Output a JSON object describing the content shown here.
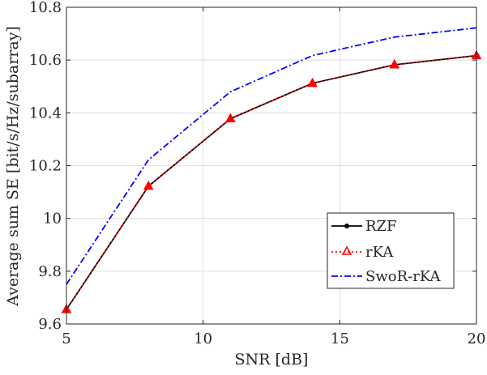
{
  "chart_data": {
    "type": "line",
    "xlabel": "SNR [dB]",
    "ylabel": "Average sum SE [bit/s/Hz/subarray]",
    "xlim": [
      5,
      20
    ],
    "ylim": [
      9.6,
      10.8
    ],
    "xticks": [
      5,
      10,
      15,
      20
    ],
    "yticks": [
      9.6,
      9.8,
      10,
      10.2,
      10.4,
      10.6,
      10.8
    ],
    "xtick_labels": [
      "5",
      "10",
      "15",
      "20"
    ],
    "ytick_labels": [
      "9.6",
      "9.8",
      "10",
      "10.2",
      "10.4",
      "10.6",
      "10.8"
    ],
    "grid": true,
    "legend_position": "bottom-right",
    "x": [
      5,
      8,
      11,
      14,
      17,
      20
    ],
    "series": [
      {
        "name": "RZF",
        "values": [
          9.655,
          10.122,
          10.378,
          10.512,
          10.582,
          10.617
        ],
        "color": "#000000",
        "line_style": "solid",
        "marker": "dot"
      },
      {
        "name": "rKA",
        "values": [
          9.655,
          10.122,
          10.378,
          10.512,
          10.582,
          10.617
        ],
        "color": "#ff0000",
        "line_style": "dotted",
        "marker": "triangle"
      },
      {
        "name": "SwoR-rKA",
        "values": [
          9.75,
          10.222,
          10.48,
          10.617,
          10.687,
          10.722
        ],
        "color": "#0000ff",
        "line_style": "dashdot",
        "marker": "none"
      }
    ]
  }
}
